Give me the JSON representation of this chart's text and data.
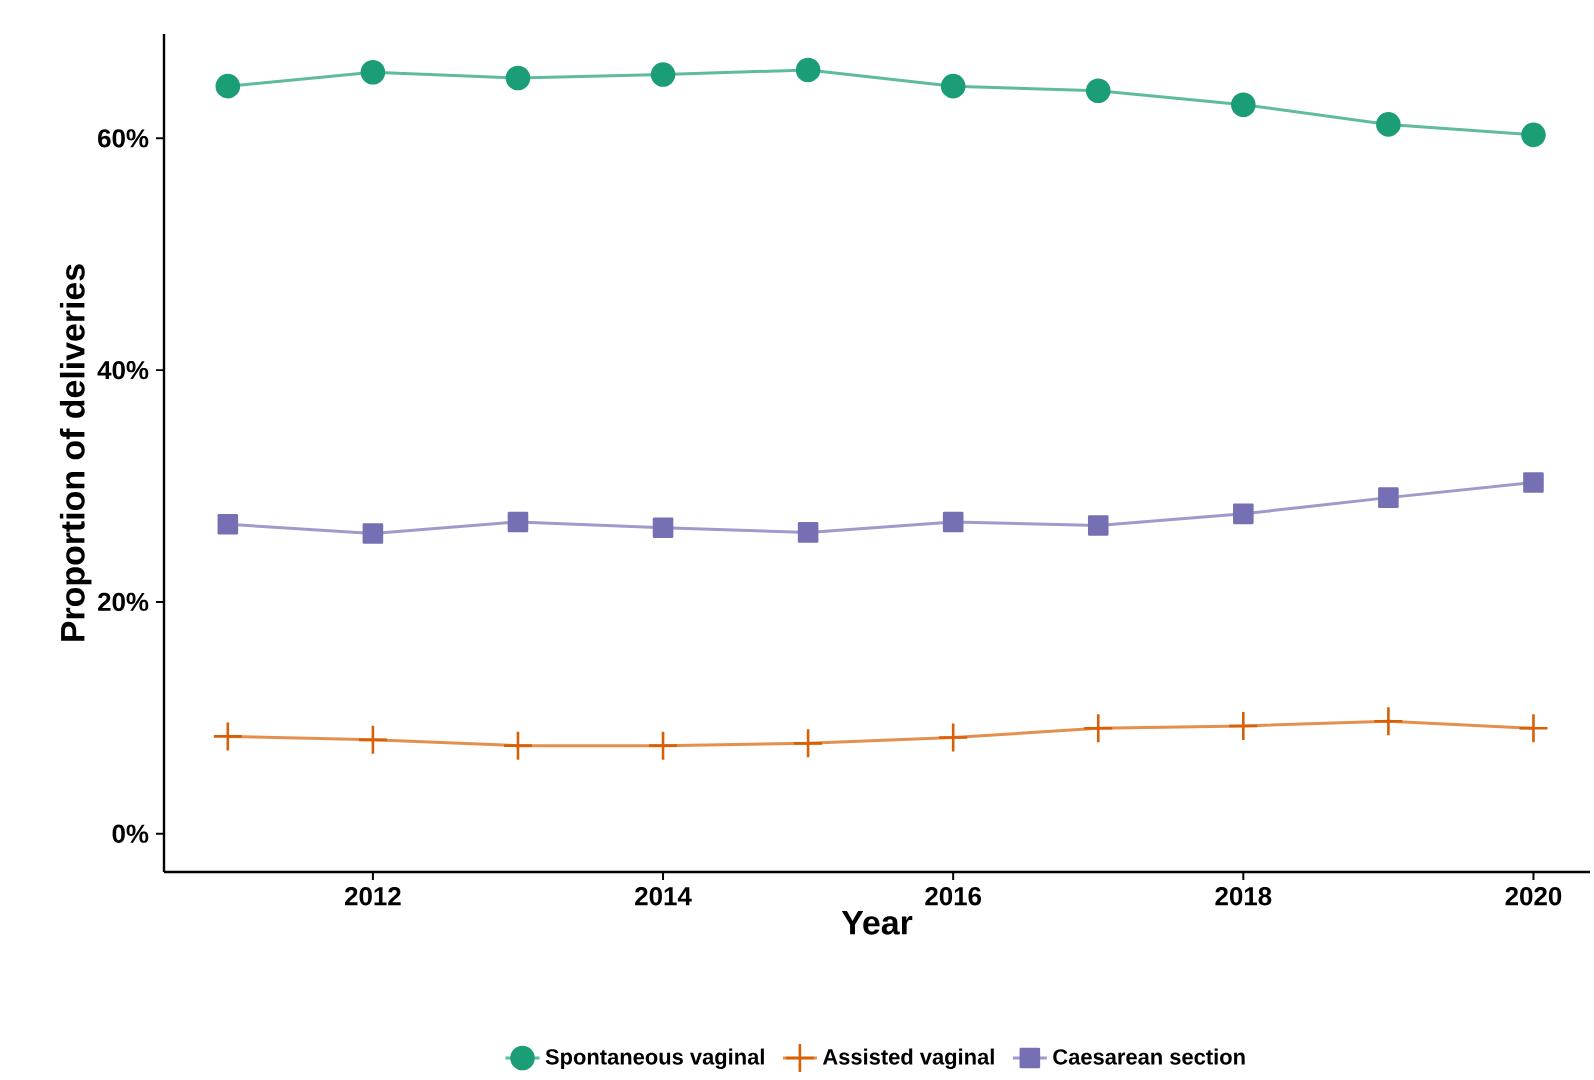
{
  "chart_data": {
    "type": "line",
    "xlabel": "Year",
    "ylabel": "Proportion of deliveries",
    "x": [
      2011,
      2012,
      2013,
      2014,
      2015,
      2016,
      2017,
      2018,
      2019,
      2020
    ],
    "series": [
      {
        "name": "Spontaneous vaginal",
        "color": "#1b9e77",
        "marker": "circle",
        "values": [
          64.5,
          65.7,
          65.2,
          65.5,
          65.9,
          64.5,
          64.1,
          62.9,
          61.2,
          60.3
        ]
      },
      {
        "name": "Assisted vaginal",
        "color": "#d95f02",
        "marker": "cross",
        "values": [
          8.4,
          8.1,
          7.6,
          7.6,
          7.8,
          8.3,
          9.1,
          9.3,
          9.7,
          9.1
        ]
      },
      {
        "name": "Caesarean section",
        "color": "#7570b3",
        "marker": "square",
        "values": [
          26.7,
          25.9,
          26.9,
          26.4,
          26.0,
          26.9,
          26.6,
          27.6,
          29.0,
          30.3
        ]
      }
    ],
    "xlim": [
      2010.56,
      2020.39
    ],
    "ylim": [
      -3.3,
      69
    ],
    "xticks": [
      2012,
      2014,
      2016,
      2018,
      2020
    ],
    "yticks": [
      {
        "value": 0,
        "label": "0%"
      },
      {
        "value": 20,
        "label": "20%"
      },
      {
        "value": 40,
        "label": "40%"
      },
      {
        "value": 60,
        "label": "60%"
      }
    ],
    "grid": false,
    "legend": "bottom",
    "line_style": "solid"
  }
}
